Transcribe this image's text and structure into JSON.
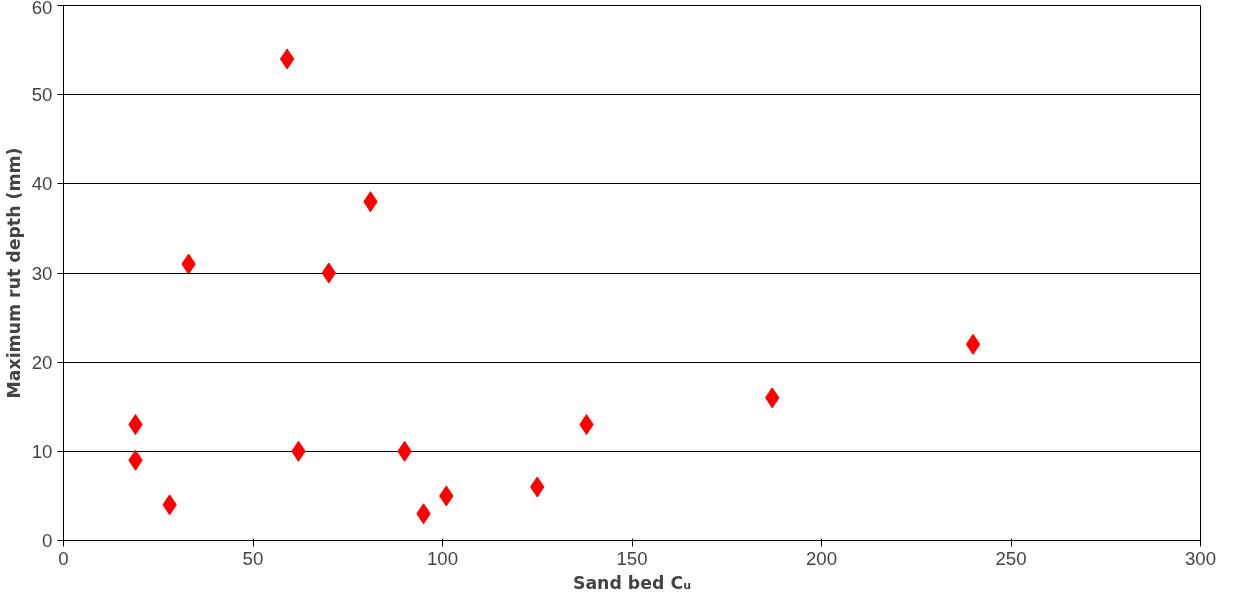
{
  "chart_data": {
    "type": "scatter",
    "xlabel": "Sand bed Cᵤ",
    "ylabel": "Maximum rut depth (mm)",
    "xlim": [
      0,
      300
    ],
    "xticks": [
      0,
      50,
      100,
      150,
      200,
      250,
      300
    ],
    "ylim": [
      0,
      60
    ],
    "yticks": [
      0,
      10,
      20,
      30,
      40,
      50,
      60
    ],
    "grid": "y",
    "marker": "diamond",
    "series": [
      {
        "color": "#ff0000",
        "x": [
          19,
          19,
          28,
          33,
          59,
          62,
          70,
          81,
          90,
          95,
          101,
          125,
          138,
          187,
          240
        ],
        "values": [
          13,
          9,
          4,
          31,
          54,
          10,
          30,
          38,
          10,
          3,
          5,
          6,
          13,
          16,
          22
        ]
      }
    ]
  }
}
